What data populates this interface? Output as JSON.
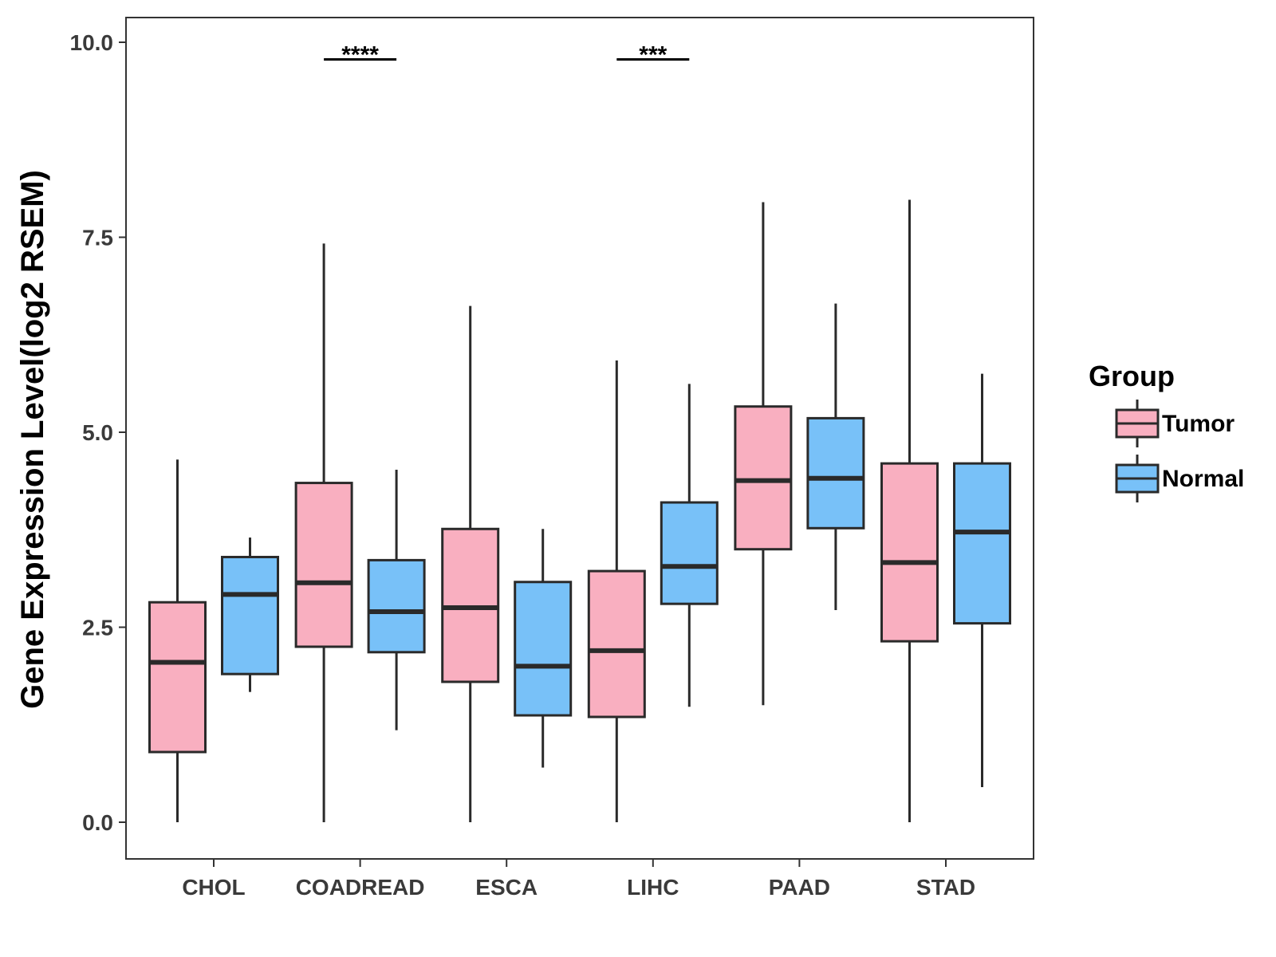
{
  "chart_data": {
    "type": "boxplot",
    "title": "",
    "xlabel": "",
    "ylabel": "Gene Expression Level(log2 RSEM)",
    "ylim": [
      -0.45,
      10.3
    ],
    "yticks": [
      0.0,
      2.5,
      5.0,
      7.5,
      10.0
    ],
    "ytick_labels": [
      "0.0",
      "2.5",
      "5.0",
      "7.5",
      "10.0"
    ],
    "grid": false,
    "categories": [
      "CHOL",
      "COADREAD",
      "ESCA",
      "LIHC",
      "PAAD",
      "STAD"
    ],
    "legend": {
      "title": "Group",
      "position": "right",
      "entries": [
        "Tumor",
        "Normal"
      ]
    },
    "series": [
      {
        "name": "Tumor",
        "color": "#F9AFC0",
        "boxes": [
          {
            "min": 0.0,
            "q1": 0.9,
            "median": 2.05,
            "q3": 2.82,
            "max": 4.65
          },
          {
            "min": 0.0,
            "q1": 2.25,
            "median": 3.07,
            "q3": 4.35,
            "max": 7.42
          },
          {
            "min": 0.0,
            "q1": 1.8,
            "median": 2.75,
            "q3": 3.76,
            "max": 6.62
          },
          {
            "min": 0.0,
            "q1": 1.35,
            "median": 2.2,
            "q3": 3.22,
            "max": 5.92
          },
          {
            "min": 1.5,
            "q1": 3.5,
            "median": 4.38,
            "q3": 5.33,
            "max": 7.95
          },
          {
            "min": 0.0,
            "q1": 2.32,
            "median": 3.33,
            "q3": 4.6,
            "max": 7.98
          }
        ]
      },
      {
        "name": "Normal",
        "color": "#78C1F8",
        "boxes": [
          {
            "min": 1.67,
            "q1": 1.9,
            "median": 2.92,
            "q3": 3.4,
            "max": 3.65
          },
          {
            "min": 1.18,
            "q1": 2.18,
            "median": 2.7,
            "q3": 3.36,
            "max": 4.52
          },
          {
            "min": 0.7,
            "q1": 1.37,
            "median": 2.0,
            "q3": 3.08,
            "max": 3.76
          },
          {
            "min": 1.48,
            "q1": 2.8,
            "median": 3.28,
            "q3": 4.1,
            "max": 5.62
          },
          {
            "min": 2.72,
            "q1": 3.77,
            "median": 4.41,
            "q3": 5.18,
            "max": 6.65
          },
          {
            "min": 0.45,
            "q1": 2.55,
            "median": 3.72,
            "q3": 4.6,
            "max": 5.75
          }
        ]
      }
    ],
    "annotations": [
      {
        "category": "COADREAD",
        "text": "****",
        "y": 9.78
      },
      {
        "category": "LIHC",
        "text": "***",
        "y": 9.78
      }
    ]
  }
}
